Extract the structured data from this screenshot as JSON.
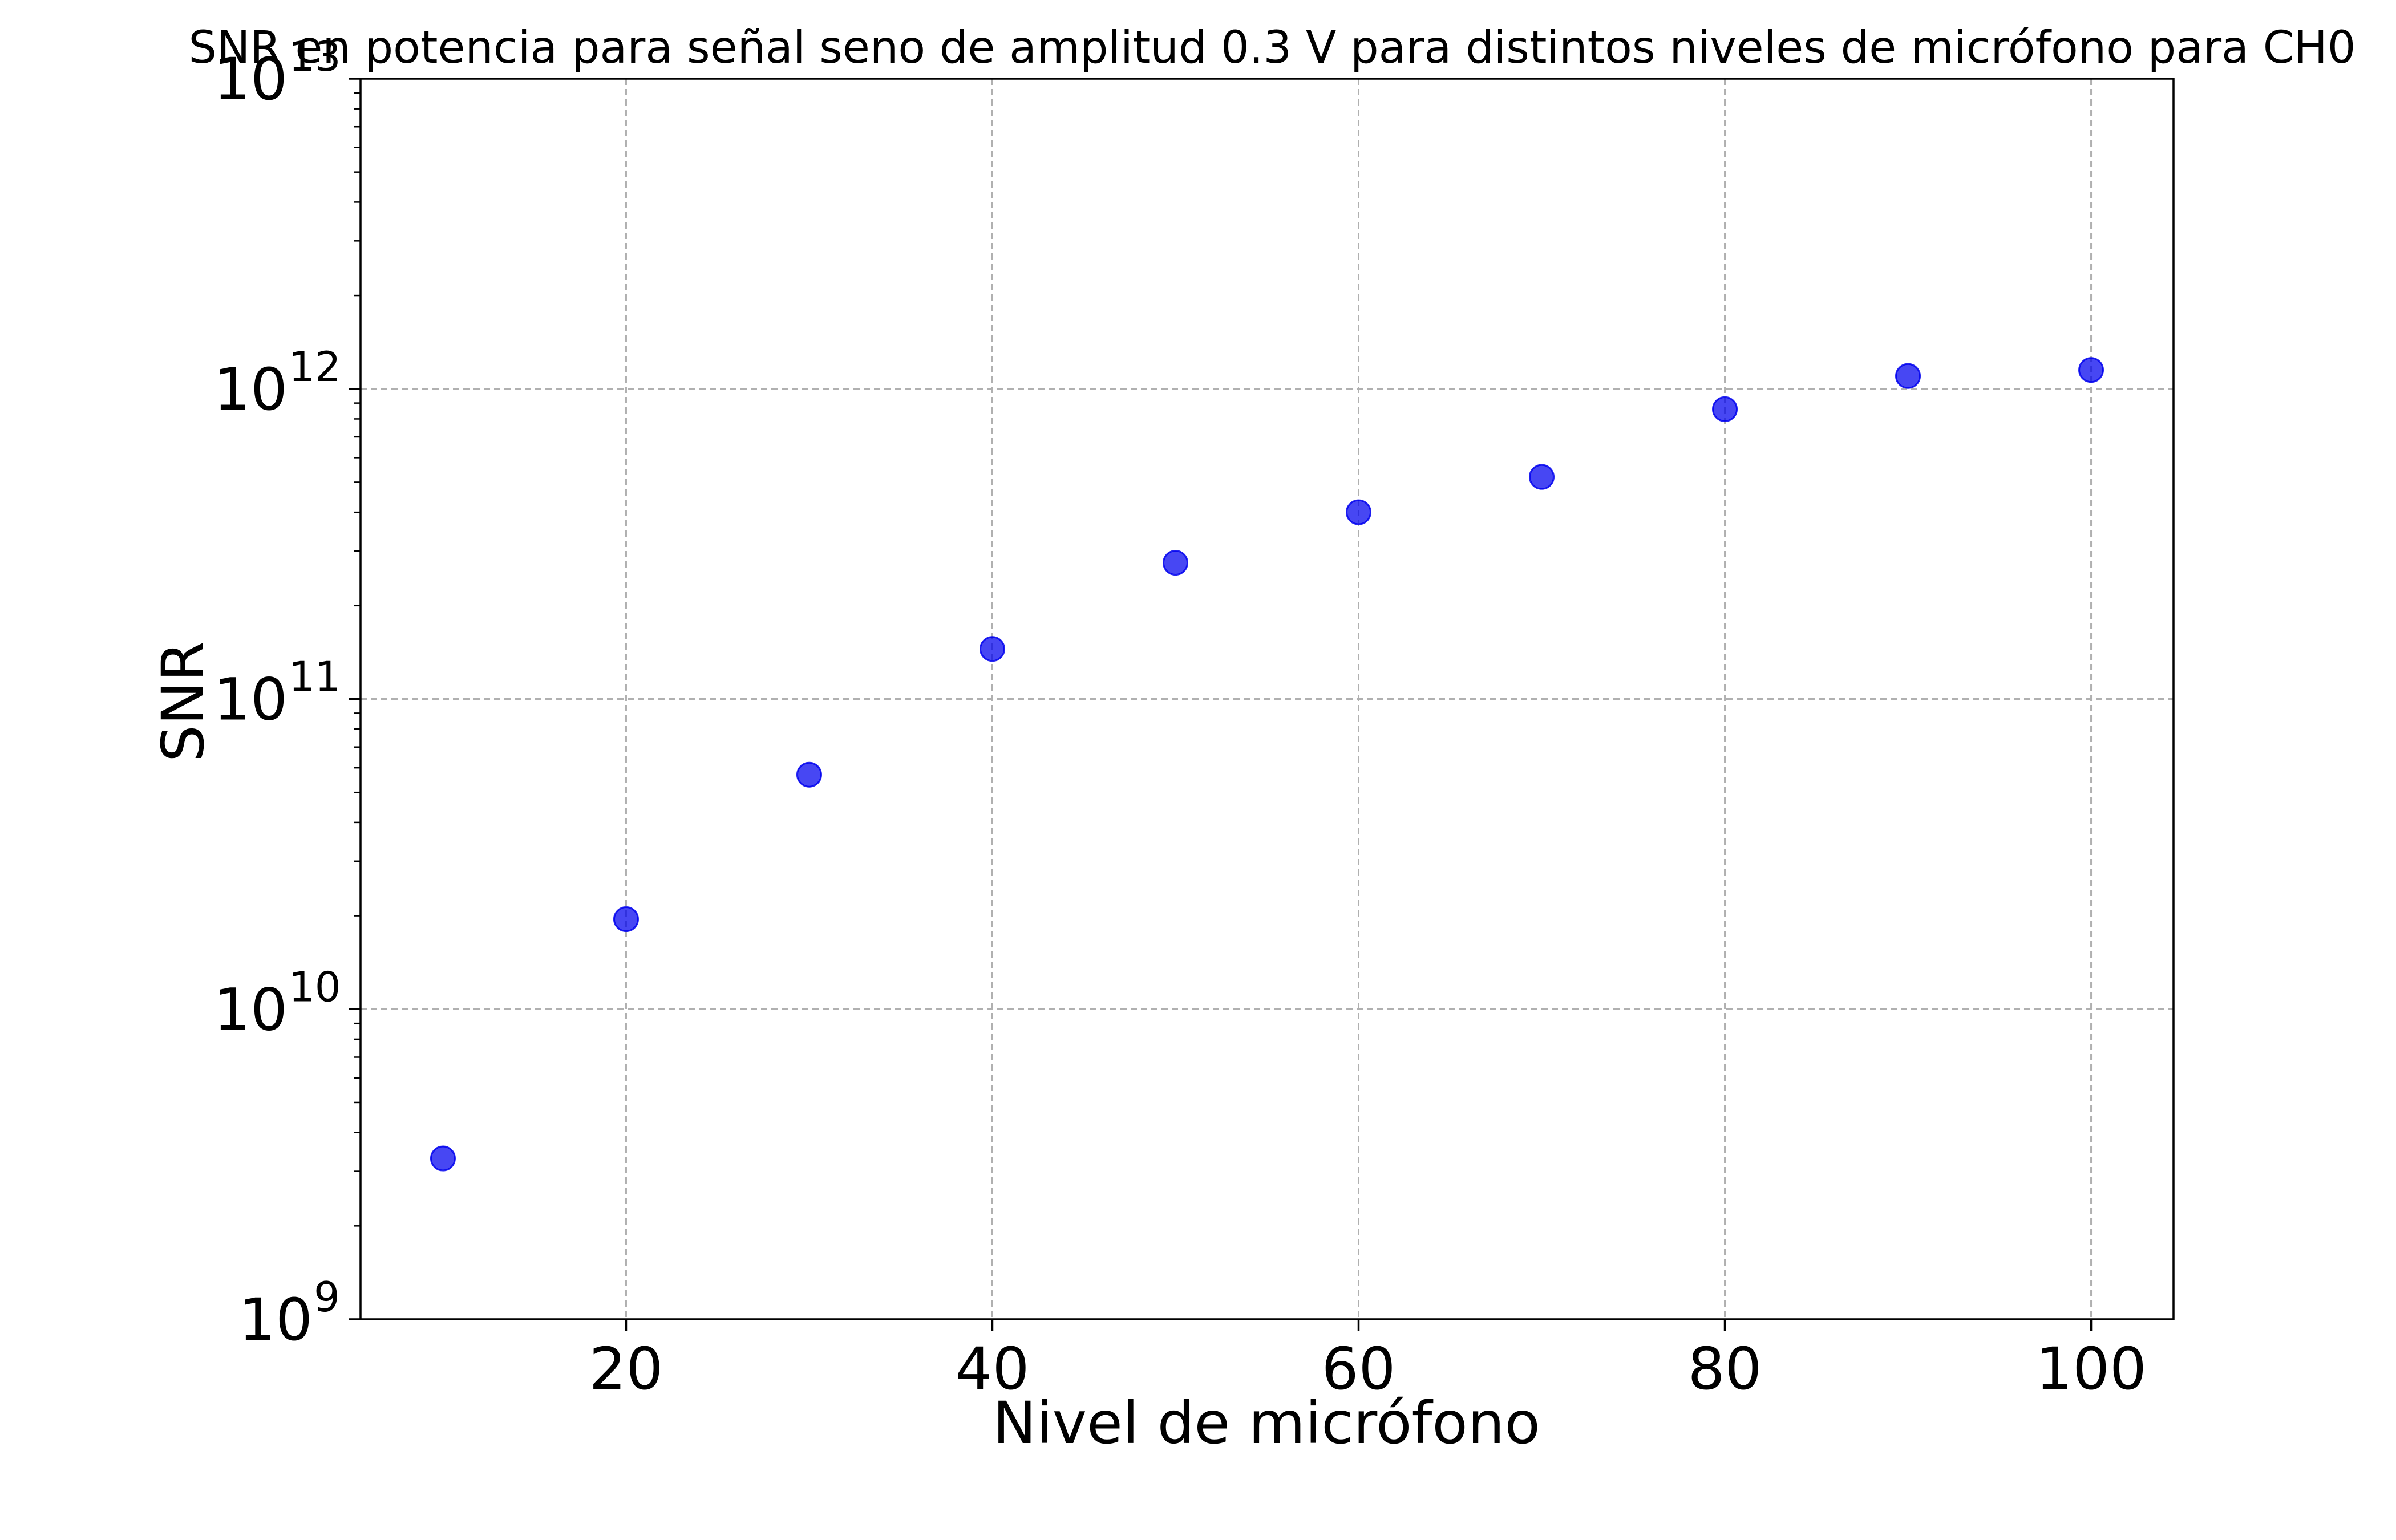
{
  "chart_data": {
    "type": "scatter",
    "title": "SNR en potencia para señal seno de amplitud 0.3 V para distintos niveles de micrófono para CH0",
    "xlabel": "Nivel de micrófono",
    "ylabel": "SNR",
    "xlim": [
      5.5,
      104.5
    ],
    "ylim": [
      1000000000.0,
      10000000000000.0
    ],
    "yscale": "log",
    "grid": true,
    "x_ticks": [
      20,
      40,
      60,
      80,
      100
    ],
    "y_ticks": [
      {
        "value": 1000000000.0,
        "base": "10",
        "exp": "9"
      },
      {
        "value": 10000000000.0,
        "base": "10",
        "exp": "10"
      },
      {
        "value": 100000000000.0,
        "base": "10",
        "exp": "11"
      },
      {
        "value": 1000000000000.0,
        "base": "10",
        "exp": "12"
      },
      {
        "value": 10000000000000.0,
        "base": "10",
        "exp": "13"
      }
    ],
    "marker_color": "#0000ee",
    "points": [
      {
        "x": 10,
        "y": 3300000000.0
      },
      {
        "x": 20,
        "y": 19500000000.0
      },
      {
        "x": 30,
        "y": 57000000000.0
      },
      {
        "x": 40,
        "y": 145000000000.0
      },
      {
        "x": 50,
        "y": 275000000000.0
      },
      {
        "x": 60,
        "y": 400000000000.0
      },
      {
        "x": 70,
        "y": 520000000000.0
      },
      {
        "x": 80,
        "y": 860000000000.0
      },
      {
        "x": 90,
        "y": 1100000000000.0
      },
      {
        "x": 100,
        "y": 1150000000000.0
      }
    ]
  }
}
